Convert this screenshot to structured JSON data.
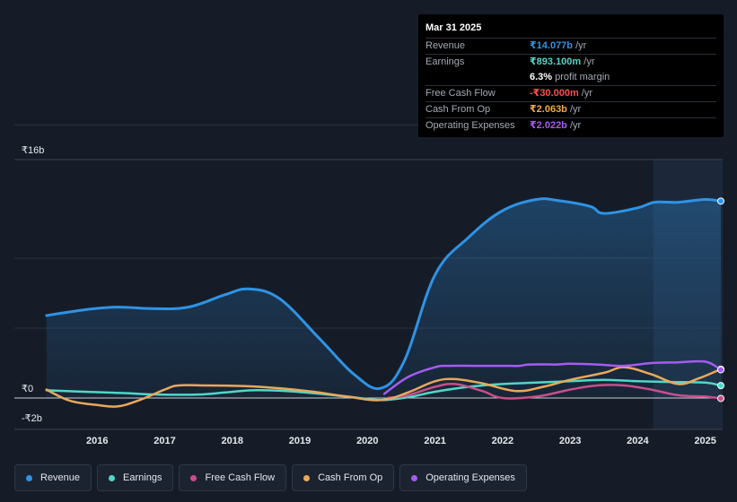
{
  "tooltip": {
    "date": "Mar 31 2025",
    "rows": [
      {
        "label": "Revenue",
        "value": "₹14.077b",
        "unit": " /yr",
        "color": "#2e93e6"
      },
      {
        "label": "Earnings",
        "value": "₹893.100m",
        "unit": " /yr",
        "color": "#4fd8c8"
      },
      {
        "label": "",
        "value": "6.3%",
        "unit": " profit margin",
        "color": "#ffffff"
      },
      {
        "label": "Free Cash Flow",
        "value": "-₹30.000m",
        "unit": " /yr",
        "color": "#ff4d4d"
      },
      {
        "label": "Cash From Op",
        "value": "₹2.063b",
        "unit": " /yr",
        "color": "#f0a94a"
      },
      {
        "label": "Operating Expenses",
        "value": "₹2.022b",
        "unit": " /yr",
        "color": "#a55cf0"
      }
    ]
  },
  "legend": [
    {
      "label": "Revenue",
      "color": "#2e93e6"
    },
    {
      "label": "Earnings",
      "color": "#4fd8c8"
    },
    {
      "label": "Free Cash Flow",
      "color": "#c84f8a"
    },
    {
      "label": "Cash From Op",
      "color": "#e8a95c"
    },
    {
      "label": "Operating Expenses",
      "color": "#a55cf0"
    }
  ],
  "chart_data": {
    "type": "area",
    "title": "",
    "xlabel": "",
    "ylabel": "",
    "y_tick_labels": [
      "₹16b",
      "₹0",
      "-₹2b"
    ],
    "ylim": [
      -2,
      16
    ],
    "xlim": [
      2015.2,
      2025.23
    ],
    "x_ticks": [
      2016,
      2017,
      2018,
      2019,
      2020,
      2021,
      2022,
      2023,
      2024,
      2025
    ],
    "x_tick_labels": [
      "2016",
      "2017",
      "2018",
      "2019",
      "2020",
      "2021",
      "2022",
      "2023",
      "2024",
      "2025"
    ],
    "forecast_start": 2024.23,
    "series": [
      {
        "name": "Revenue",
        "color": "#2e93e6",
        "fill": true,
        "x": [
          2015.25,
          2015.8,
          2016.3,
          2016.8,
          2017.35,
          2017.9,
          2018.25,
          2018.7,
          2019.3,
          2019.8,
          2020.2,
          2020.55,
          2021.0,
          2021.5,
          2022.0,
          2022.5,
          2022.85,
          2023.3,
          2023.5,
          2024.0,
          2024.25,
          2024.6,
          2025.0,
          2025.23
        ],
        "values": [
          5.9,
          6.3,
          6.5,
          6.4,
          6.5,
          7.4,
          7.8,
          7.1,
          4.2,
          1.7,
          0.7,
          2.7,
          8.8,
          11.5,
          13.4,
          14.2,
          14.1,
          13.7,
          13.2,
          13.6,
          14.0,
          14.0,
          14.2,
          14.08
        ]
      },
      {
        "name": "Earnings",
        "color": "#4fd8c8",
        "fill": false,
        "x": [
          2015.25,
          2015.8,
          2016.4,
          2016.9,
          2017.5,
          2017.9,
          2018.3,
          2018.8,
          2019.3,
          2019.8,
          2020.2,
          2020.6,
          2021.0,
          2021.5,
          2022.0,
          2022.5,
          2023.0,
          2023.5,
          2024.0,
          2024.5,
          2025.0,
          2025.23
        ],
        "values": [
          0.55,
          0.45,
          0.35,
          0.25,
          0.25,
          0.4,
          0.55,
          0.5,
          0.3,
          0.05,
          -0.15,
          0.05,
          0.45,
          0.8,
          1.0,
          1.1,
          1.2,
          1.3,
          1.2,
          1.15,
          1.1,
          0.89
        ]
      },
      {
        "name": "Free Cash Flow",
        "color": "#c84f8a",
        "fill": false,
        "x": [
          2020.3,
          2020.6,
          2021.0,
          2021.3,
          2021.7,
          2022.0,
          2022.5,
          2023.0,
          2023.4,
          2023.8,
          2024.2,
          2024.6,
          2025.0,
          2025.23
        ],
        "values": [
          0.0,
          0.2,
          0.8,
          1.0,
          0.5,
          0.0,
          0.1,
          0.6,
          0.9,
          0.9,
          0.6,
          0.2,
          0.1,
          -0.03
        ]
      },
      {
        "name": "Cash From Op",
        "color": "#e8a95c",
        "fill": false,
        "x": [
          2015.25,
          2015.6,
          2016.0,
          2016.3,
          2016.6,
          2017.0,
          2017.2,
          2017.6,
          2018.2,
          2018.7,
          2019.2,
          2019.7,
          2020.2,
          2020.6,
          2021.0,
          2021.3,
          2021.7,
          2022.2,
          2022.6,
          2023.0,
          2023.5,
          2023.8,
          2024.2,
          2024.6,
          2024.9,
          2025.23
        ],
        "values": [
          0.6,
          -0.2,
          -0.5,
          -0.6,
          -0.2,
          0.6,
          0.9,
          0.9,
          0.85,
          0.7,
          0.45,
          0.1,
          -0.15,
          0.4,
          1.2,
          1.35,
          1.05,
          0.5,
          0.8,
          1.3,
          1.8,
          2.2,
          1.7,
          1.0,
          1.4,
          2.063
        ]
      },
      {
        "name": "Operating Expenses",
        "color": "#a55cf0",
        "fill": false,
        "x": [
          2020.25,
          2020.6,
          2021.0,
          2021.2,
          2021.6,
          2022.0,
          2022.25,
          2022.4,
          2022.8,
          2023.0,
          2023.4,
          2023.8,
          2024.2,
          2024.6,
          2025.0,
          2025.23
        ],
        "values": [
          0.3,
          1.5,
          2.2,
          2.3,
          2.3,
          2.3,
          2.3,
          2.4,
          2.4,
          2.45,
          2.4,
          2.3,
          2.5,
          2.55,
          2.6,
          2.022
        ]
      }
    ]
  }
}
